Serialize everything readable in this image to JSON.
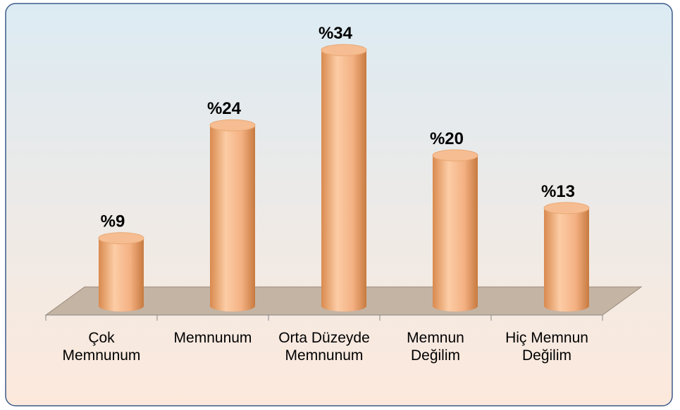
{
  "chart_data": {
    "type": "bar",
    "categories": [
      "Çok Memnunum",
      "Memnunum",
      "Orta Düzeyde Memnunum",
      "Memnun Değilim",
      "Hiç Memnun Değilim"
    ],
    "values": [
      9,
      24,
      34,
      20,
      13
    ],
    "value_labels": [
      "%9",
      "%24",
      "%34",
      "%20",
      "%13"
    ],
    "color": "#f4b183"
  }
}
